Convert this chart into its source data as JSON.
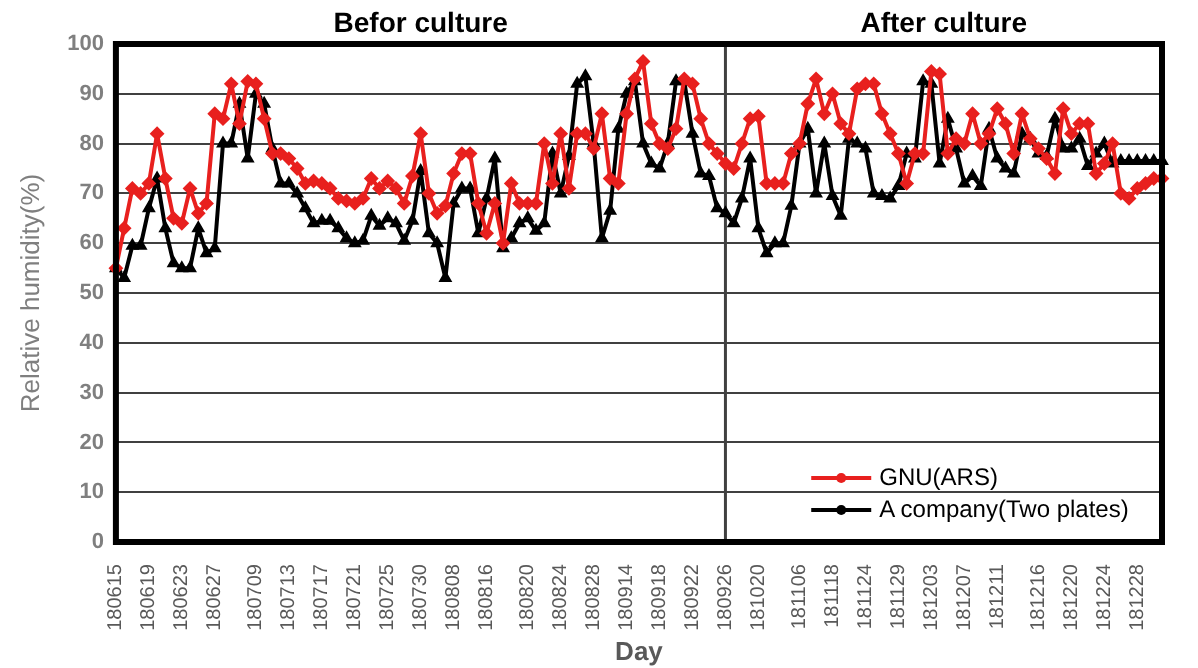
{
  "chart_data": {
    "type": "line",
    "xlabel": "Day",
    "ylabel": "Relative humidity(%)",
    "annotations": [
      "Befor culture",
      "After culture"
    ],
    "categories": [
      "180615",
      null,
      null,
      null,
      "180619",
      null,
      null,
      null,
      "180623",
      null,
      null,
      null,
      "180627",
      null,
      null,
      null,
      null,
      "180709",
      null,
      null,
      null,
      "180713",
      null,
      null,
      null,
      "180717",
      null,
      null,
      null,
      "180721",
      null,
      null,
      null,
      "180725",
      null,
      null,
      null,
      "180730",
      null,
      null,
      null,
      "180808",
      null,
      null,
      null,
      "180816",
      null,
      null,
      null,
      null,
      "180820",
      null,
      null,
      null,
      "180824",
      null,
      null,
      null,
      "180828",
      null,
      null,
      null,
      "180914",
      null,
      null,
      null,
      "180918",
      null,
      null,
      null,
      "180922",
      null,
      null,
      null,
      "180926",
      null,
      null,
      null,
      "181020",
      null,
      null,
      null,
      null,
      "181106",
      null,
      null,
      null,
      "181118",
      null,
      null,
      null,
      "181124",
      null,
      null,
      null,
      "181129",
      null,
      null,
      null,
      "181203",
      null,
      null,
      null,
      "181207",
      null,
      null,
      null,
      "181211",
      null,
      null,
      null,
      null,
      "181216",
      null,
      null,
      null,
      "181220",
      null,
      null,
      null,
      "181224",
      null,
      null,
      null,
      "181228",
      null,
      null,
      null
    ],
    "series": [
      {
        "name": "GNU(ARS)",
        "color": "#e8201e",
        "marker": "diamond",
        "values": [
          55,
          63,
          71,
          70,
          72,
          82,
          73,
          65,
          64,
          71,
          66,
          68,
          86,
          85,
          92,
          84,
          92.5,
          92,
          85,
          78,
          78,
          77,
          75,
          72,
          72.5,
          72,
          71,
          69,
          68.5,
          68,
          69,
          73,
          71,
          72.5,
          71,
          68,
          73.5,
          82,
          70,
          66,
          67.5,
          74,
          78,
          78,
          68,
          62,
          68,
          60,
          72,
          68,
          68,
          68,
          80,
          72,
          82,
          71,
          82,
          82,
          79,
          86,
          73,
          72,
          86,
          93,
          96.5,
          84,
          80,
          79,
          83,
          93,
          92,
          85,
          80,
          78,
          76,
          75,
          80,
          85,
          85.5,
          72,
          72,
          72,
          78,
          80,
          88,
          93,
          86,
          90,
          84,
          82,
          91,
          92,
          92,
          86,
          82,
          78,
          72,
          78,
          78,
          94.5,
          94,
          78,
          81,
          80,
          86,
          80,
          82,
          87,
          84,
          78,
          86,
          81,
          79,
          77,
          74,
          87,
          82,
          84,
          84,
          74,
          76,
          80,
          70,
          69,
          71,
          72,
          73,
          73
        ]
      },
      {
        "name": "A company(Two plates)",
        "color": "#000000",
        "marker": "triangle",
        "values": [
          55,
          53,
          59.5,
          59.5,
          67,
          73,
          63,
          56,
          55,
          55,
          63,
          58,
          59,
          80,
          80,
          88,
          77,
          90,
          88,
          79,
          72,
          72,
          70,
          67,
          64,
          64.5,
          64.5,
          63,
          61,
          60,
          60.5,
          65.5,
          63.5,
          65,
          64,
          60.5,
          64.5,
          74.5,
          62,
          60,
          53,
          68,
          71,
          71,
          62,
          69,
          77,
          59,
          61,
          64,
          65,
          62.5,
          64,
          78,
          70,
          77.5,
          92,
          93.5,
          80,
          61,
          66.5,
          83,
          90,
          92.5,
          80,
          76,
          75,
          80,
          92.5,
          92.5,
          82,
          74,
          73.5,
          67,
          66,
          64,
          69,
          77,
          63,
          58,
          60,
          60,
          67.5,
          80,
          83,
          70,
          80,
          69.5,
          65.5,
          81,
          80,
          79,
          70,
          69.5,
          69,
          71.5,
          78,
          77,
          92.5,
          92,
          76,
          85,
          79,
          72,
          73.5,
          71.5,
          83,
          77,
          75,
          74,
          82,
          81,
          78,
          77.5,
          85,
          79,
          79,
          81,
          75.5,
          78,
          80,
          76,
          76.5,
          76.5,
          76.5,
          76.5,
          76.5,
          76.5
        ]
      }
    ],
    "ylim": [
      0,
      100
    ],
    "yticks": [
      0,
      10,
      20,
      30,
      40,
      50,
      60,
      70,
      80,
      90,
      100
    ],
    "ref_lines": [
      {
        "axis": "x",
        "value": "180926",
        "color": "#404040"
      }
    ],
    "grid": "y",
    "legend": "bottom right"
  }
}
